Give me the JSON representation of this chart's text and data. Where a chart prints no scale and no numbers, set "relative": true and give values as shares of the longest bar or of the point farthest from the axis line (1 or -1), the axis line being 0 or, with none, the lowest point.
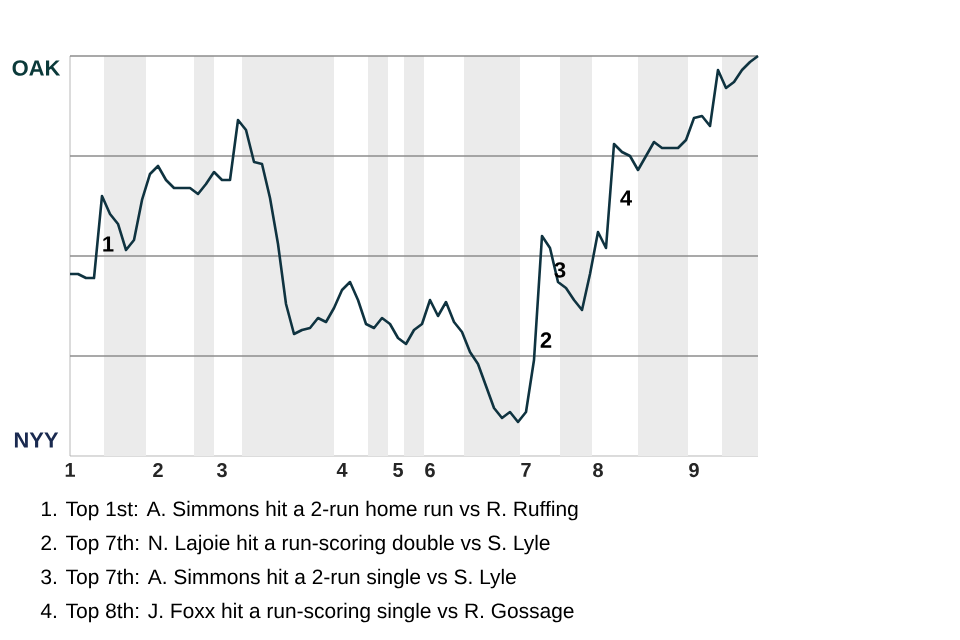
{
  "chart_data": {
    "type": "line",
    "relative": true,
    "categories": [
      "1",
      null,
      null,
      null,
      null,
      null,
      null,
      null,
      null,
      null,
      null,
      "2",
      null,
      null,
      null,
      null,
      null,
      null,
      null,
      "3",
      null,
      null,
      null,
      null,
      null,
      null,
      null,
      null,
      null,
      null,
      null,
      null,
      null,
      null,
      "4",
      null,
      null,
      null,
      null,
      null,
      null,
      "5",
      null,
      null,
      null,
      "6",
      null,
      null,
      null,
      null,
      null,
      null,
      null,
      null,
      null,
      null,
      null,
      "7",
      null,
      null,
      null,
      null,
      null,
      null,
      null,
      null,
      "8",
      null,
      null,
      null,
      null,
      null,
      null,
      null,
      null,
      null,
      null,
      null,
      "9",
      null,
      null,
      null,
      null,
      null,
      null,
      null,
      null
    ],
    "series": [
      {
        "color": "#0f3340",
        "values": [
          0.455,
          0.455,
          0.445,
          0.445,
          0.65,
          0.605,
          0.58,
          0.515,
          0.54,
          0.64,
          0.705,
          0.725,
          0.69,
          0.67,
          0.67,
          0.67,
          0.655,
          0.68,
          0.71,
          0.69,
          0.69,
          0.84,
          0.815,
          0.735,
          0.73,
          0.645,
          0.53,
          0.38,
          0.305,
          0.315,
          0.32,
          0.345,
          0.335,
          0.37,
          0.415,
          0.435,
          0.39,
          0.33,
          0.32,
          0.345,
          0.33,
          0.295,
          0.28,
          0.315,
          0.33,
          0.39,
          0.35,
          0.385,
          0.335,
          0.31,
          0.26,
          0.23,
          0.175,
          0.12,
          0.095,
          0.11,
          0.085,
          0.11,
          0.24,
          0.55,
          0.52,
          0.435,
          0.42,
          0.39,
          0.365,
          0.455,
          0.56,
          0.52,
          0.78,
          0.76,
          0.75,
          0.715,
          0.75,
          0.785,
          0.77,
          0.77,
          0.77,
          0.79,
          0.845,
          0.85,
          0.825,
          0.965,
          0.92,
          0.935,
          0.965,
          0.985,
          1
        ]
      }
    ],
    "ref_lines": [
      {
        "axis": "y",
        "value": 0.25,
        "color": "#8c8c8c"
      },
      {
        "axis": "y",
        "value": 0.5,
        "color": "#8c8c8c"
      },
      {
        "axis": "y",
        "value": 0.75,
        "color": "#8c8c8c"
      },
      {
        "axis": "y",
        "value": 1,
        "color": "#8c8c8c"
      }
    ],
    "marker": "none",
    "line_style": "solid",
    "annotations": [
      "OAK",
      "NYY",
      "1",
      "2",
      "3",
      "4",
      "1. Top 1st: A. Simmons hit a 2-run home run vs R. Ruffing",
      "2. Top 7th: N. Lajoie hit a run-scoring double vs S. Lyle",
      "3. Top 7th: A. Simmons hit a 2-run single vs S. Lyle",
      "4. Top 8th: J. Foxx hit a run-scoring single vs R. Gossage"
    ]
  }
}
